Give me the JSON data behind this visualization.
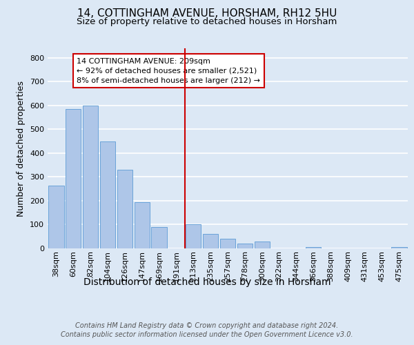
{
  "title1": "14, COTTINGHAM AVENUE, HORSHAM, RH12 5HU",
  "title2": "Size of property relative to detached houses in Horsham",
  "xlabel": "Distribution of detached houses by size in Horsham",
  "ylabel": "Number of detached properties",
  "categories": [
    "38sqm",
    "60sqm",
    "82sqm",
    "104sqm",
    "126sqm",
    "147sqm",
    "169sqm",
    "191sqm",
    "213sqm",
    "235sqm",
    "257sqm",
    "278sqm",
    "300sqm",
    "322sqm",
    "344sqm",
    "366sqm",
    "388sqm",
    "409sqm",
    "431sqm",
    "453sqm",
    "475sqm"
  ],
  "values": [
    265,
    585,
    600,
    450,
    330,
    195,
    90,
    0,
    100,
    60,
    40,
    20,
    30,
    0,
    0,
    5,
    0,
    0,
    0,
    0,
    5
  ],
  "bar_color": "#aec6e8",
  "bar_edge_color": "#5b9bd5",
  "vline_x_index": 8,
  "vline_color": "#cc0000",
  "annotation_text": "14 COTTINGHAM AVENUE: 209sqm\n← 92% of detached houses are smaller (2,521)\n8% of semi-detached houses are larger (212) →",
  "annotation_box_color": "#ffffff",
  "annotation_box_edge_color": "#cc0000",
  "ylim": [
    0,
    840
  ],
  "yticks": [
    0,
    100,
    200,
    300,
    400,
    500,
    600,
    700,
    800
  ],
  "background_color": "#dce8f5",
  "footer_text": "Contains HM Land Registry data © Crown copyright and database right 2024.\nContains public sector information licensed under the Open Government Licence v3.0.",
  "grid_color": "#ffffff",
  "title_fontsize": 11,
  "subtitle_fontsize": 9.5,
  "axis_label_fontsize": 9,
  "tick_fontsize": 8,
  "footer_fontsize": 7.0
}
